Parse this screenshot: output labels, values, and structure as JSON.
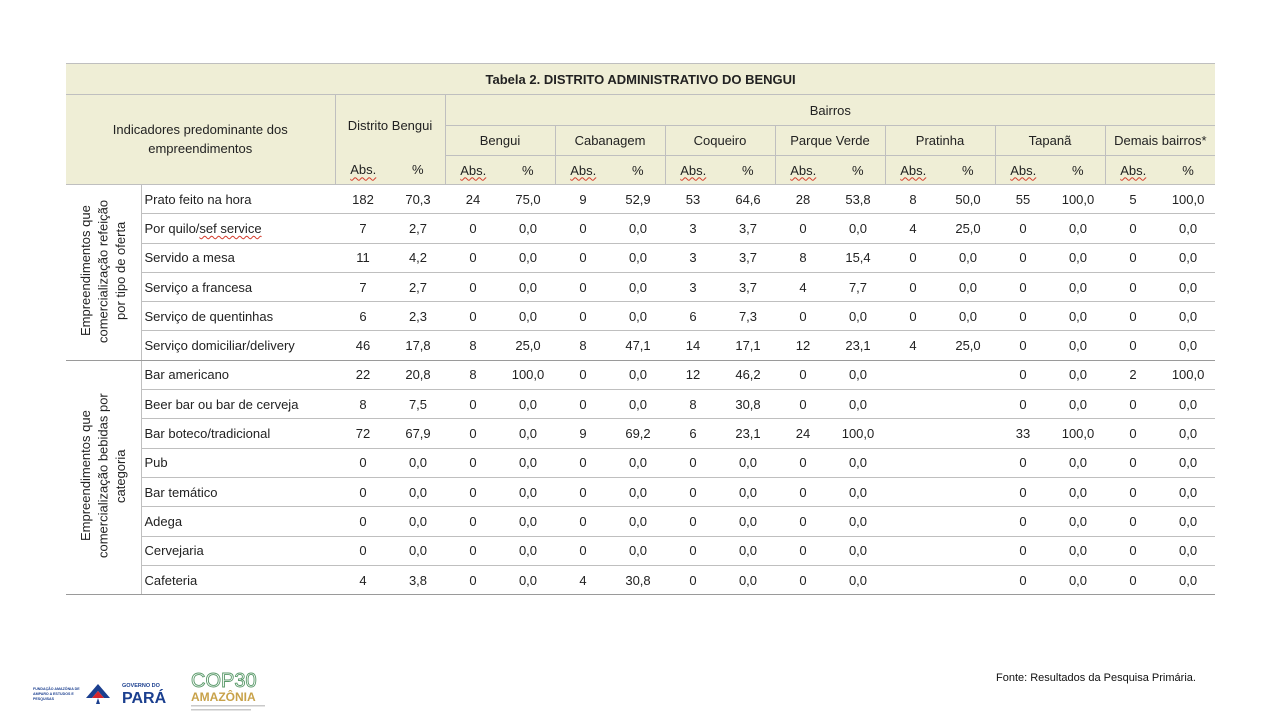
{
  "table": {
    "title": "Tabela 2. DISTRITO ADMINISTRATIVO DO BENGUI",
    "indicator_header": "Indicadores predominante dos empreendimentos",
    "district_header": "Distrito Bengui",
    "bairros_header": "Bairros",
    "bairros": [
      "Bengui",
      "Cabanagem",
      "Coqueiro",
      "Parque Verde",
      "Pratinha",
      "Tapanã",
      "Demais bairros*"
    ],
    "abs_label": "Abs.",
    "pct_label": "%",
    "groups": [
      {
        "label": "Empreendimentos que comercialização refeição por tipo de oferta",
        "rows": [
          {
            "label": "Prato feito na hora",
            "values": [
              "182",
              "70,3",
              "24",
              "75,0",
              "9",
              "52,9",
              "53",
              "64,6",
              "28",
              "53,8",
              "8",
              "50,0",
              "55",
              "100,0",
              "5",
              "100,0"
            ]
          },
          {
            "label": "Por quilo/sef service",
            "values": [
              "7",
              "2,7",
              "0",
              "0,0",
              "0",
              "0,0",
              "3",
              "3,7",
              "0",
              "0,0",
              "4",
              "25,0",
              "0",
              "0,0",
              "0",
              "0,0"
            ]
          },
          {
            "label": "Servido a mesa",
            "values": [
              "11",
              "4,2",
              "0",
              "0,0",
              "0",
              "0,0",
              "3",
              "3,7",
              "8",
              "15,4",
              "0",
              "0,0",
              "0",
              "0,0",
              "0",
              "0,0"
            ]
          },
          {
            "label": "Serviço a francesa",
            "values": [
              "7",
              "2,7",
              "0",
              "0,0",
              "0",
              "0,0",
              "3",
              "3,7",
              "4",
              "7,7",
              "0",
              "0,0",
              "0",
              "0,0",
              "0",
              "0,0"
            ]
          },
          {
            "label": "Serviço de quentinhas",
            "values": [
              "6",
              "2,3",
              "0",
              "0,0",
              "0",
              "0,0",
              "6",
              "7,3",
              "0",
              "0,0",
              "0",
              "0,0",
              "0",
              "0,0",
              "0",
              "0,0"
            ]
          },
          {
            "label": "Serviço domiciliar/delivery",
            "values": [
              "46",
              "17,8",
              "8",
              "25,0",
              "8",
              "47,1",
              "14",
              "17,1",
              "12",
              "23,1",
              "4",
              "25,0",
              "0",
              "0,0",
              "0",
              "0,0"
            ]
          }
        ]
      },
      {
        "label": "Empreendimentos que comercialização bebidas por categoria",
        "rows": [
          {
            "label": "Bar americano",
            "values": [
              "22",
              "20,8",
              "8",
              "100,0",
              "0",
              "0,0",
              "12",
              "46,2",
              "0",
              "0,0",
              "",
              "",
              "0",
              "0,0",
              "2",
              "100,0"
            ]
          },
          {
            "label": "Beer bar ou bar de cerveja",
            "values": [
              "8",
              "7,5",
              "0",
              "0,0",
              "0",
              "0,0",
              "8",
              "30,8",
              "0",
              "0,0",
              "",
              "",
              "0",
              "0,0",
              "0",
              "0,0"
            ]
          },
          {
            "label": "Bar boteco/tradicional",
            "values": [
              "72",
              "67,9",
              "0",
              "0,0",
              "9",
              "69,2",
              "6",
              "23,1",
              "24",
              "100,0",
              "",
              "",
              "33",
              "100,0",
              "0",
              "0,0"
            ]
          },
          {
            "label": "Pub",
            "values": [
              "0",
              "0,0",
              "0",
              "0,0",
              "0",
              "0,0",
              "0",
              "0,0",
              "0",
              "0,0",
              "",
              "",
              "0",
              "0,0",
              "0",
              "0,0"
            ]
          },
          {
            "label": "Bar temático",
            "values": [
              "0",
              "0,0",
              "0",
              "0,0",
              "0",
              "0,0",
              "0",
              "0,0",
              "0",
              "0,0",
              "",
              "",
              "0",
              "0,0",
              "0",
              "0,0"
            ]
          },
          {
            "label": "Adega",
            "values": [
              "0",
              "0,0",
              "0",
              "0,0",
              "0",
              "0,0",
              "0",
              "0,0",
              "0",
              "0,0",
              "",
              "",
              "0",
              "0,0",
              "0",
              "0,0"
            ]
          },
          {
            "label": "Cervejaria",
            "values": [
              "0",
              "0,0",
              "0",
              "0,0",
              "0",
              "0,0",
              "0",
              "0,0",
              "0",
              "0,0",
              "",
              "",
              "0",
              "0,0",
              "0",
              "0,0"
            ]
          },
          {
            "label": "Cafeteria",
            "values": [
              "4",
              "3,8",
              "0",
              "0,0",
              "4",
              "30,8",
              "0",
              "0,0",
              "0",
              "0,0",
              "",
              "",
              "0",
              "0,0",
              "0",
              "0,0"
            ]
          }
        ]
      }
    ]
  },
  "source_note": "Fonte: Resultados da Pesquisa Primária.",
  "logos": {
    "fapespa_text": "FUNDAÇÃO AMAZÔNIA DE AMPARO A ESTUDOS E PESQUISAS",
    "governo_text": "GOVERNO DO",
    "para_text": "PARÁ",
    "cop_text": "COP30",
    "amazonia_text": "AMAZÔNIA"
  },
  "colors": {
    "header_bg": "#efeed6",
    "border": "#bfbfbf",
    "para_blue": "#1b3f8f",
    "para_red": "#d7262b",
    "cop_green": "#5a9a6a",
    "cop_gold": "#c8a24a"
  }
}
